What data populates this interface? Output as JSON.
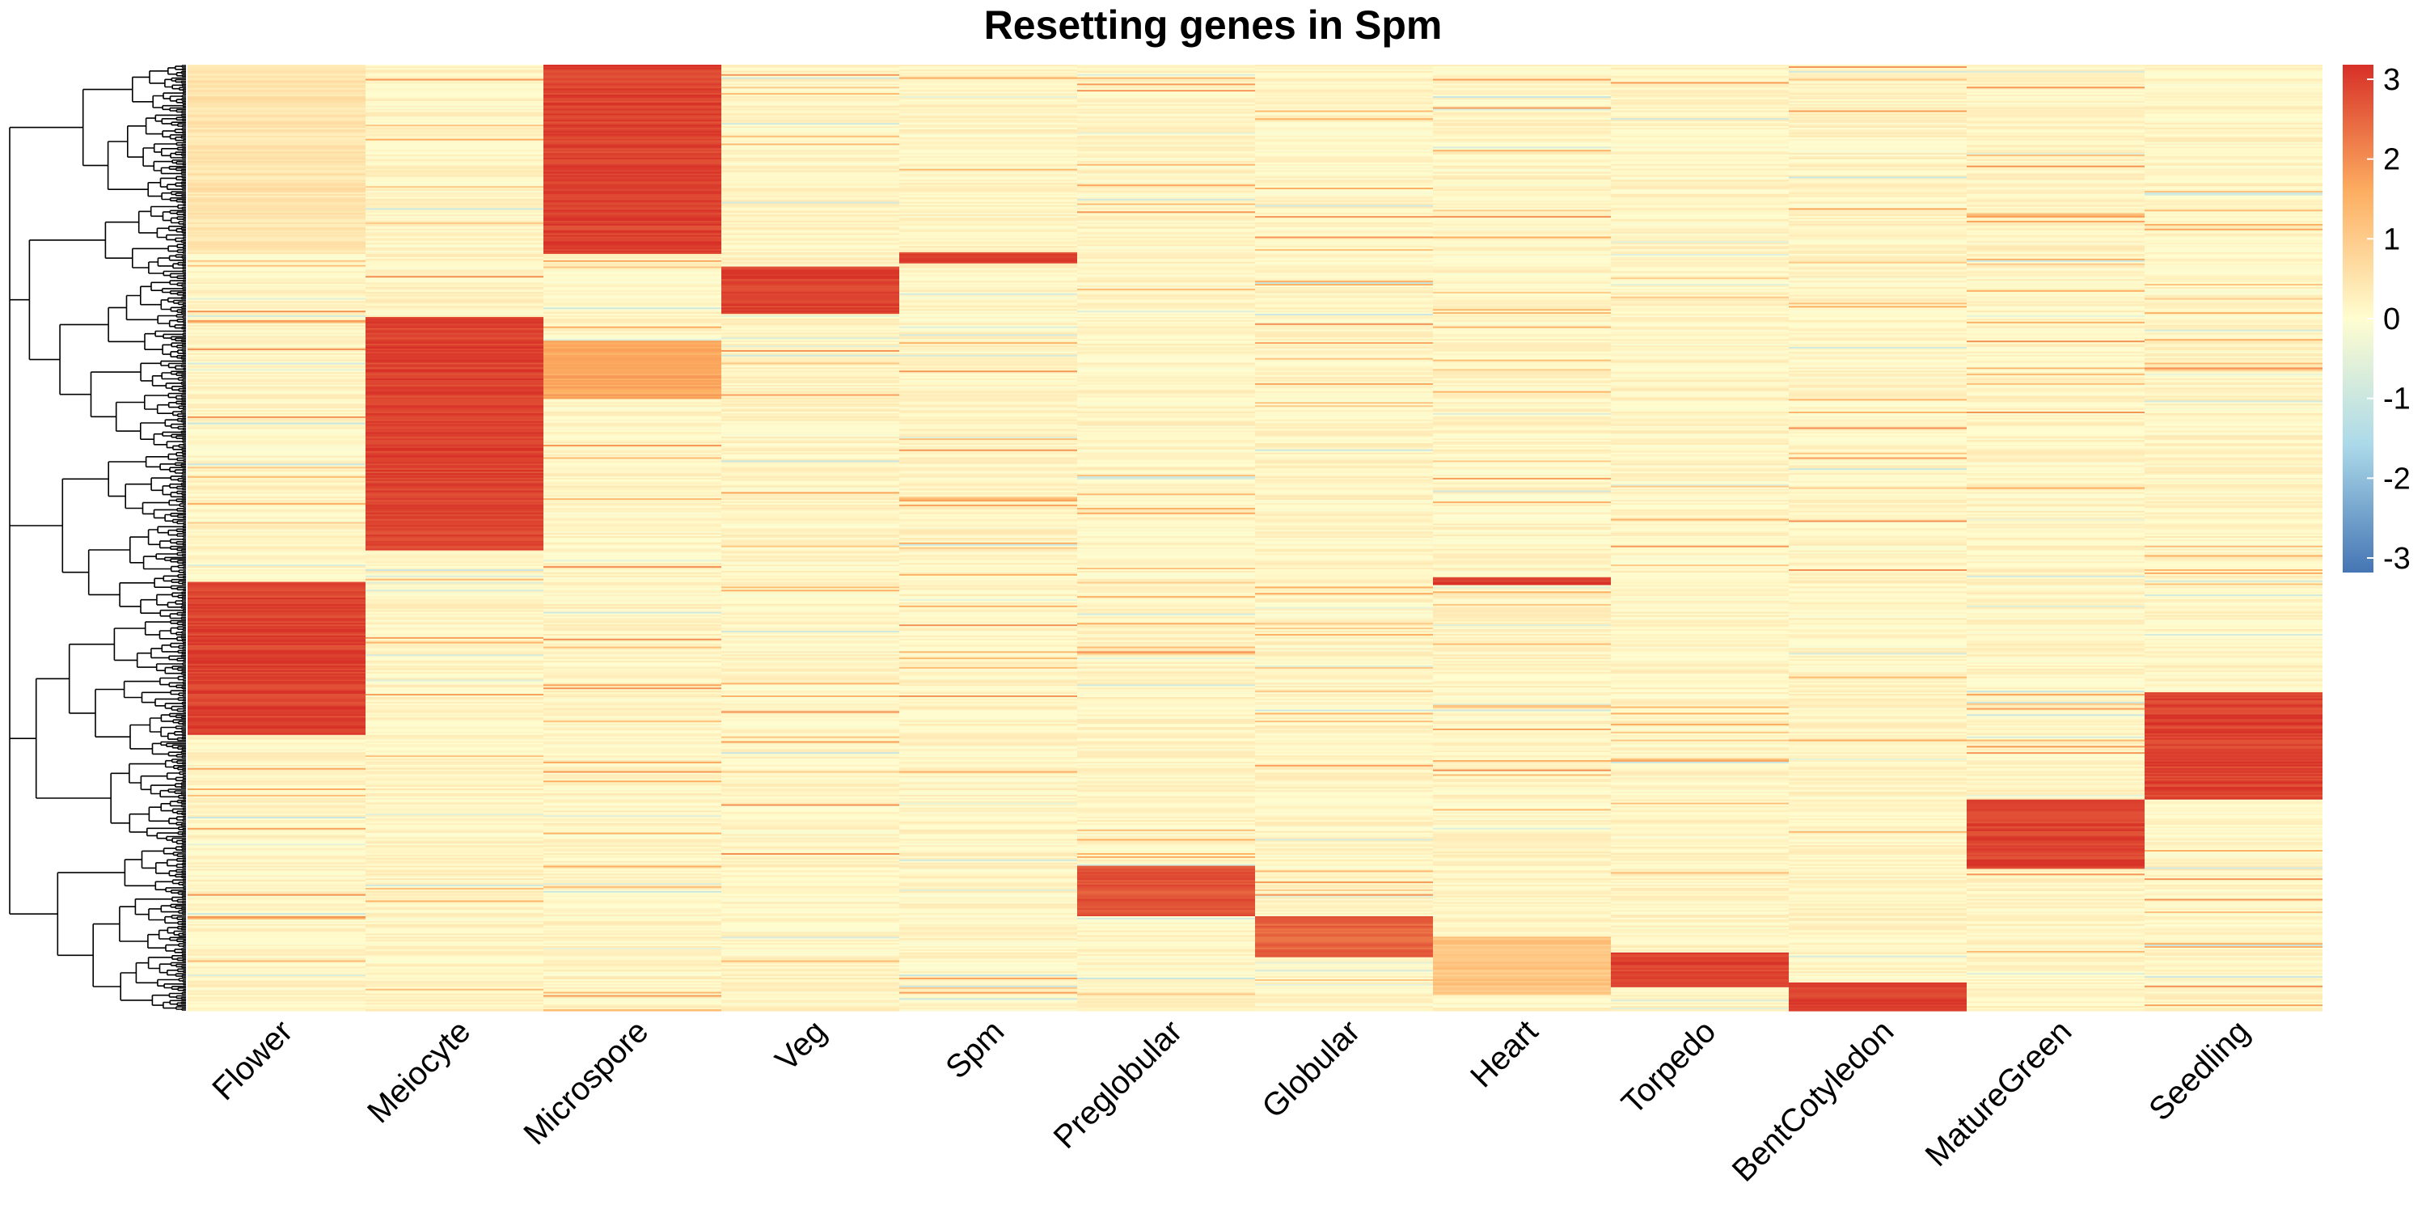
{
  "chart_data": {
    "type": "heatmap",
    "title": "Resetting genes in Spm",
    "columns": [
      "Flower",
      "Meiocyte",
      "Microspore",
      "Veg",
      "Spm",
      "Preglobular",
      "Globular",
      "Heart",
      "Torpedo",
      "BentCotyledon",
      "MatureGreen",
      "Seedling"
    ],
    "color_scale": {
      "min": -3,
      "max": 3,
      "ticks": [
        3,
        2,
        1,
        0,
        -1,
        -2,
        -3
      ],
      "colors": [
        "#4575b4",
        "#abd9e9",
        "#fffdd0",
        "#fdae61",
        "#d73027"
      ]
    },
    "row_dendrogram": true,
    "row_count": 600,
    "background_value": 0.15,
    "clusters": [
      {
        "column": "Microspore",
        "row_start": 0,
        "row_end": 120,
        "value": 3
      },
      {
        "column": "Flower",
        "row_start": 0,
        "row_end": 120,
        "value": 0.7
      },
      {
        "column": "Veg",
        "row_start": 128,
        "row_end": 158,
        "value": 3
      },
      {
        "column": "Spm",
        "row_start": 119,
        "row_end": 126,
        "value": 3
      },
      {
        "column": "Meiocyte",
        "row_start": 160,
        "row_end": 308,
        "value": 3
      },
      {
        "column": "Microspore",
        "row_start": 175,
        "row_end": 212,
        "value": 1.8
      },
      {
        "column": "Flower",
        "row_start": 328,
        "row_end": 425,
        "value": 3
      },
      {
        "column": "Seedling",
        "row_start": 398,
        "row_end": 466,
        "value": 3
      },
      {
        "column": "MatureGreen",
        "row_start": 466,
        "row_end": 510,
        "value": 3
      },
      {
        "column": "Preglobular",
        "row_start": 508,
        "row_end": 540,
        "value": 2.8
      },
      {
        "column": "Globular",
        "row_start": 540,
        "row_end": 566,
        "value": 2.6
      },
      {
        "column": "Heart",
        "row_start": 553,
        "row_end": 590,
        "value": 1.3
      },
      {
        "column": "Torpedo",
        "row_start": 563,
        "row_end": 585,
        "value": 3
      },
      {
        "column": "BentCotyledon",
        "row_start": 582,
        "row_end": 600,
        "value": 3
      },
      {
        "column": "Heart",
        "row_start": 325,
        "row_end": 330,
        "value": 3
      }
    ]
  }
}
